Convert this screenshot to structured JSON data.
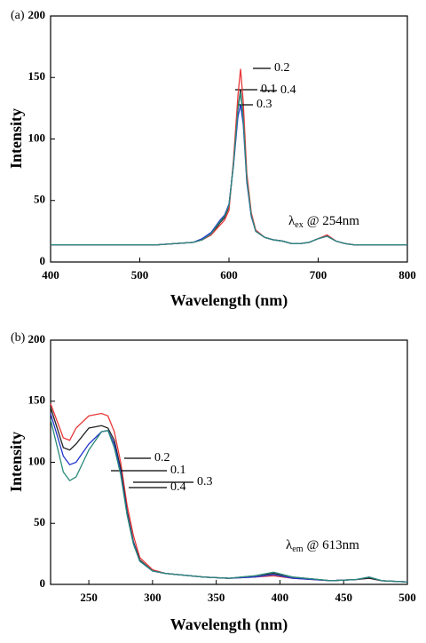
{
  "chart_data": [
    {
      "type": "line",
      "panel_label": "(a)",
      "x_label": "Wavelength (nm)",
      "y_label": "Intensity",
      "annotation": {
        "symbol": "λ",
        "sub": "ex",
        "text": "@ 254nm"
      },
      "xlim": [
        400,
        800
      ],
      "xticks": [
        400,
        500,
        600,
        700,
        800
      ],
      "ylim": [
        0,
        200
      ],
      "yticks": [
        0,
        50,
        100,
        150,
        200
      ],
      "x": [
        400,
        420,
        440,
        460,
        480,
        500,
        520,
        540,
        560,
        570,
        580,
        590,
        595,
        600,
        605,
        610,
        613,
        616,
        620,
        625,
        630,
        640,
        650,
        660,
        670,
        680,
        690,
        700,
        710,
        720,
        730,
        740,
        760,
        780,
        800
      ],
      "series": [
        {
          "name": "0.1",
          "color": "#222222",
          "values": [
            14,
            14,
            14,
            14,
            14,
            14,
            14,
            15,
            16,
            18,
            22,
            32,
            36,
            45,
            80,
            125,
            140,
            118,
            68,
            38,
            25,
            20,
            18,
            17,
            15,
            15,
            16,
            19,
            21,
            17,
            15,
            14,
            14,
            14,
            14
          ]
        },
        {
          "name": "0.2",
          "color": "#e8383a",
          "values": [
            14,
            14,
            14,
            14,
            14,
            14,
            14,
            15,
            16,
            18,
            22,
            30,
            34,
            42,
            82,
            135,
            157,
            130,
            72,
            40,
            26,
            20,
            18,
            17,
            15,
            15,
            16,
            19,
            22,
            17,
            15,
            14,
            14,
            14,
            14
          ]
        },
        {
          "name": "0.3",
          "color": "#2233cc",
          "values": [
            14,
            14,
            14,
            14,
            14,
            14,
            14,
            15,
            16,
            19,
            24,
            34,
            38,
            47,
            78,
            118,
            128,
            112,
            65,
            37,
            25,
            20,
            18,
            17,
            15,
            15,
            16,
            19,
            21,
            17,
            15,
            14,
            14,
            14,
            14
          ]
        },
        {
          "name": "0.4",
          "color": "#2a8a7a",
          "values": [
            14,
            14,
            14,
            14,
            14,
            14,
            14,
            15,
            16,
            18,
            23,
            33,
            37,
            46,
            79,
            124,
            138,
            116,
            67,
            38,
            25,
            20,
            18,
            17,
            15,
            15,
            16,
            19,
            21,
            17,
            15,
            14,
            14,
            14,
            14
          ]
        }
      ]
    },
    {
      "type": "line",
      "panel_label": "(b)",
      "x_label": "Wavelength (nm)",
      "y_label": "Intensity",
      "annotation": {
        "symbol": "λ",
        "sub": "em",
        "text": "@ 613nm"
      },
      "xlim": [
        220,
        500
      ],
      "xticks": [
        250,
        300,
        350,
        400,
        450,
        500
      ],
      "ylim": [
        0,
        200
      ],
      "yticks": [
        0,
        50,
        100,
        150,
        200
      ],
      "x": [
        220,
        230,
        235,
        240,
        250,
        260,
        265,
        270,
        275,
        280,
        285,
        290,
        300,
        310,
        320,
        340,
        360,
        380,
        395,
        410,
        440,
        460,
        470,
        480,
        500
      ],
      "series": [
        {
          "name": "0.2",
          "color": "#e8383a",
          "values": [
            148,
            120,
            118,
            128,
            138,
            140,
            138,
            125,
            100,
            65,
            40,
            22,
            12,
            9,
            8,
            6,
            5,
            6,
            7,
            5,
            3,
            4,
            5,
            3,
            2
          ]
        },
        {
          "name": "0.1",
          "color": "#222222",
          "values": [
            145,
            112,
            110,
            115,
            128,
            130,
            128,
            118,
            95,
            60,
            35,
            20,
            11,
            9,
            8,
            6,
            5,
            7,
            9,
            6,
            3,
            4,
            5,
            3,
            2
          ]
        },
        {
          "name": "0.3",
          "color": "#2233cc",
          "values": [
            140,
            105,
            98,
            100,
            115,
            125,
            126,
            115,
            92,
            58,
            34,
            19,
            11,
            9,
            8,
            6,
            5,
            6,
            8,
            5,
            3,
            4,
            6,
            3,
            2
          ]
        },
        {
          "name": "0.4",
          "color": "#2a8a7a",
          "values": [
            135,
            92,
            85,
            88,
            110,
            125,
            126,
            112,
            90,
            57,
            33,
            19,
            11,
            9,
            8,
            6,
            5,
            7,
            10,
            6,
            3,
            4,
            6,
            3,
            2
          ]
        }
      ]
    }
  ]
}
